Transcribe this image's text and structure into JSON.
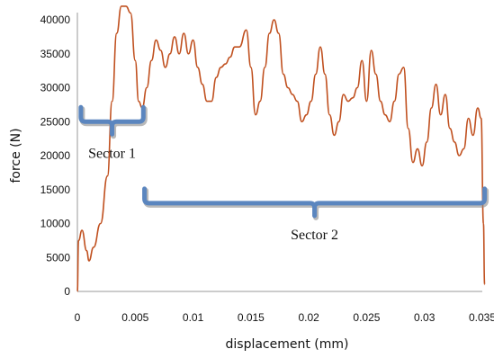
{
  "chart_data": {
    "type": "line",
    "xlabel": "displacement (mm)",
    "ylabel": "force (N)",
    "xlim": [
      0,
      0.035
    ],
    "ylim": [
      0,
      40000
    ],
    "xticks": [
      "0",
      "0.005",
      "0.01",
      "0.015",
      "0.02",
      "0.025",
      "0.03",
      "0.035"
    ],
    "yticks": [
      "0",
      "5000",
      "10000",
      "15000",
      "20000",
      "25000",
      "30000",
      "35000",
      "40000"
    ],
    "grid": false,
    "legend": "none",
    "series": [
      {
        "color": "#c0501f",
        "x": [
          0,
          0.0001,
          0.0004,
          0.0008,
          0.001,
          0.0014,
          0.002,
          0.0026,
          0.003,
          0.0034,
          0.0038,
          0.0042,
          0.0046,
          0.005,
          0.0053,
          0.0056,
          0.006,
          0.0064,
          0.0068,
          0.0072,
          0.0076,
          0.008,
          0.0084,
          0.0088,
          0.0092,
          0.0096,
          0.01,
          0.0104,
          0.0108,
          0.0112,
          0.0116,
          0.012,
          0.0124,
          0.0128,
          0.0132,
          0.0136,
          0.014,
          0.0146,
          0.015,
          0.0154,
          0.0158,
          0.0162,
          0.0166,
          0.017,
          0.0174,
          0.0178,
          0.0182,
          0.0186,
          0.019,
          0.0194,
          0.0198,
          0.0202,
          0.0206,
          0.021,
          0.0214,
          0.0218,
          0.0222,
          0.0226,
          0.023,
          0.0234,
          0.0238,
          0.0242,
          0.0246,
          0.025,
          0.0254,
          0.0258,
          0.0262,
          0.0266,
          0.027,
          0.0274,
          0.0278,
          0.0282,
          0.0286,
          0.029,
          0.0294,
          0.0298,
          0.0302,
          0.0306,
          0.031,
          0.0314,
          0.0318,
          0.0322,
          0.0326,
          0.033,
          0.0334,
          0.0338,
          0.0342,
          0.0346,
          0.0349,
          0.0351,
          0.0352
        ],
        "y": [
          0,
          7500,
          9000,
          6000,
          4500,
          6500,
          10000,
          17000,
          28000,
          38000,
          42000,
          42000,
          41000,
          34000,
          28000,
          27000,
          30000,
          34000,
          37000,
          35500,
          33000,
          35000,
          37500,
          35000,
          38000,
          35000,
          37000,
          33000,
          30500,
          28000,
          28000,
          31500,
          33000,
          33500,
          34500,
          36000,
          36000,
          38500,
          33000,
          26000,
          28000,
          33000,
          38000,
          40000,
          38000,
          32000,
          30000,
          29000,
          28000,
          25000,
          26000,
          28000,
          32000,
          36000,
          32000,
          26000,
          23000,
          25000,
          29000,
          28000,
          28500,
          30000,
          34000,
          28000,
          35500,
          32000,
          28000,
          26000,
          25000,
          28000,
          32000,
          33000,
          24000,
          19000,
          21000,
          18500,
          22000,
          27000,
          30500,
          26000,
          29000,
          24000,
          22000,
          20000,
          21000,
          25500,
          23000,
          27000,
          25500,
          10000,
          1000
        ]
      }
    ],
    "annotations": [
      {
        "label": "Sector 1",
        "from": 0.0003,
        "to": 0.0057,
        "y_level": 25000
      },
      {
        "label": "Sector 2",
        "from": 0.0058,
        "to": 0.0352,
        "y_level": 13000
      }
    ]
  }
}
